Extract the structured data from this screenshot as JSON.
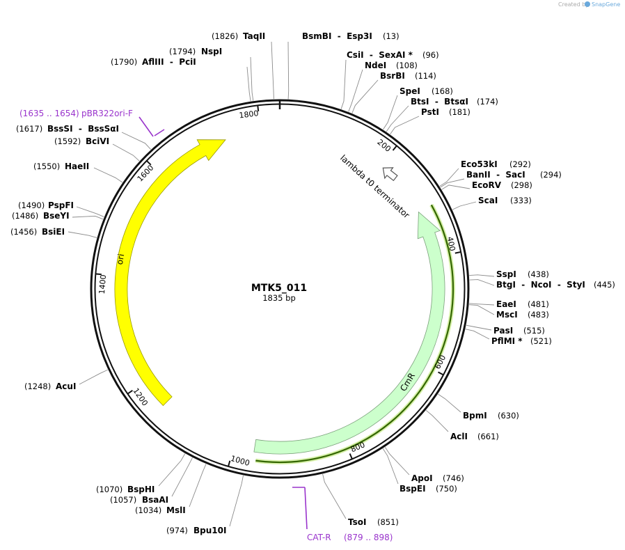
{
  "watermark": {
    "prefix": "Created by",
    "brand": "SnapGene"
  },
  "map": {
    "name": "MTK5_011",
    "length": "1835 bp",
    "ticks": [
      200,
      400,
      600,
      800,
      1000,
      1200,
      1400,
      1600,
      1800
    ]
  },
  "features": [
    {
      "label": "ori"
    },
    {
      "label": "CmR"
    },
    {
      "label": "lambda t0 terminator"
    }
  ],
  "primers": [
    {
      "name": "pBR322ori-F",
      "range": "(1635 .. 1654)"
    },
    {
      "name": "CAT-R",
      "range": "(879 .. 898)"
    }
  ],
  "sites": [
    {
      "name": "TaqII",
      "position": "(1826)"
    },
    {
      "name": "BsmBI  -  Esp3I",
      "position": "(13)"
    },
    {
      "name": "CsiI  -  SexAI *",
      "position": "(96)"
    },
    {
      "name": "NdeI",
      "position": "(108)"
    },
    {
      "name": "BsrBI",
      "position": "(114)"
    },
    {
      "name": "SpeI",
      "position": "(168)"
    },
    {
      "name": "BtsI  -  BtsαI",
      "position": "(174)"
    },
    {
      "name": "PstI",
      "position": "(181)"
    },
    {
      "name": "Eco53kI",
      "position": "(292)"
    },
    {
      "name": "BanII  -  SacI",
      "position": "(294)"
    },
    {
      "name": "EcoRV",
      "position": "(298)"
    },
    {
      "name": "ScaI",
      "position": "(333)"
    },
    {
      "name": "SspI",
      "position": "(438)"
    },
    {
      "name": "BtgI  -  NcoI  -  StyI",
      "position": "(445)"
    },
    {
      "name": "EaeI",
      "position": "(481)"
    },
    {
      "name": "MscI",
      "position": "(483)"
    },
    {
      "name": "PasI",
      "position": "(515)"
    },
    {
      "name": "PflMI *",
      "position": "(521)"
    },
    {
      "name": "BpmI",
      "position": "(630)"
    },
    {
      "name": "AclI",
      "position": "(661)"
    },
    {
      "name": "ApoI",
      "position": "(746)"
    },
    {
      "name": "BspEI",
      "position": "(750)"
    },
    {
      "name": "TsoI",
      "position": "(851)"
    },
    {
      "name": "NspI",
      "position": "(1794)"
    },
    {
      "name": "AflIII  -  PciI",
      "position": "(1790)"
    },
    {
      "name": "BssSI  -  BssSαI",
      "position": "(1617)"
    },
    {
      "name": "BciVI",
      "position": "(1592)"
    },
    {
      "name": "HaeII",
      "position": "(1550)"
    },
    {
      "name": "PspFI",
      "position": "(1490)"
    },
    {
      "name": "BseYI",
      "position": "(1486)"
    },
    {
      "name": "BsiEI",
      "position": "(1456)"
    },
    {
      "name": "AcuI",
      "position": "(1248)"
    },
    {
      "name": "BspHI",
      "position": "(1070)"
    },
    {
      "name": "BsaAI",
      "position": "(1057)"
    },
    {
      "name": "MslI",
      "position": "(1034)"
    },
    {
      "name": "Bpu10I",
      "position": "(974)"
    }
  ]
}
